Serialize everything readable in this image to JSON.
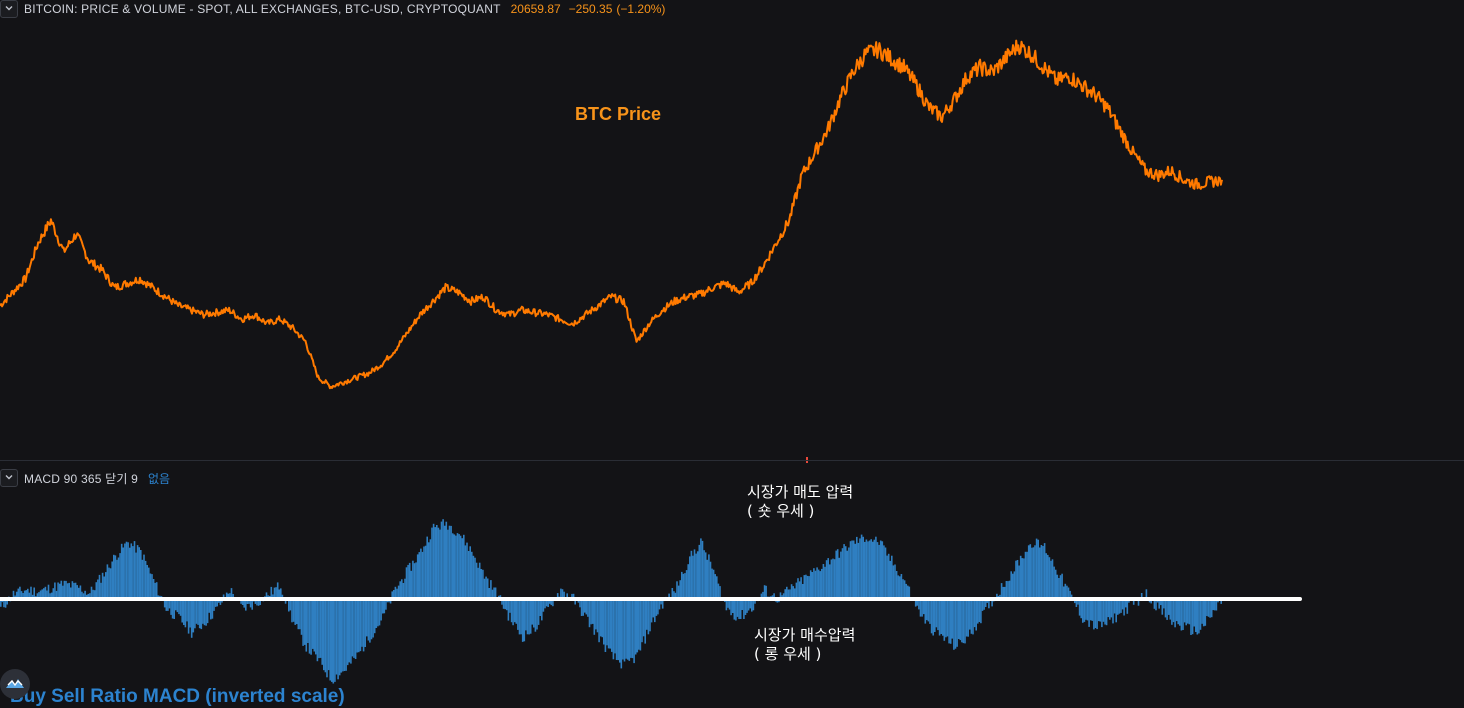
{
  "header": {
    "title": "BITCOIN: PRICE & VOLUME - SPOT, ALL EXCHANGES, BTC-USD, CRYPTOQUANT",
    "last": "20659.87",
    "change": "−250.35",
    "change_pct": "(−1.20%)",
    "value_color": "#f7931a"
  },
  "indicator": {
    "title": "MACD 90 365 닫기 9",
    "status": "없음",
    "status_color": "#2c83cf"
  },
  "annotations": {
    "btc_price": "BTC Price",
    "sell_pressure_1": "시장가 매도 압력",
    "sell_pressure_2": "( 숏 우세 )",
    "buy_pressure_1": "시장가 매수압력",
    "buy_pressure_2": "( 롱 우세 )",
    "bottom_title": "Buy Sell Ratio MACD (inverted scale)"
  },
  "colors": {
    "price_line": "#ff7a00",
    "histogram": "#2f7fc1",
    "zero_line": "#ffffff",
    "background": "#131316"
  },
  "chart_data": [
    {
      "type": "line",
      "series": [
        {
          "name": "BTC Price",
          "values": [
            46000,
            49000,
            52000,
            60000,
            65000,
            58000,
            62000,
            56000,
            54000,
            50000,
            51000,
            52000,
            50000,
            48000,
            46000,
            45000,
            44000,
            44500,
            45000,
            43000,
            44000,
            42000,
            43000,
            41000,
            38000,
            30000,
            28000,
            29000,
            30000,
            31000,
            33000,
            36000,
            40000,
            44000,
            47000,
            50000,
            49000,
            47000,
            48000,
            45000,
            44000,
            45000,
            44500,
            44000,
            43000,
            42000,
            44000,
            46000,
            48000,
            47000,
            38000,
            42000,
            45000,
            47000,
            48000,
            48500,
            50000,
            51000,
            49000,
            51000,
            55000,
            60000,
            65000,
            75000,
            80000,
            85000,
            92000,
            98000,
            102000,
            103000,
            101000,
            99000,
            95000,
            90000,
            88000,
            92000,
            97000,
            99000,
            98000,
            101000,
            104000,
            102000,
            99000,
            96000,
            97000,
            95000,
            93000,
            90000,
            85000,
            80000,
            76000,
            75000,
            76000,
            74000,
            73000,
            73500,
            74000
          ]
        }
      ]
    },
    {
      "type": "bar",
      "series": [
        {
          "name": "MACD 90 365",
          "values": [
            -1,
            0.5,
            1,
            0.8,
            1.2,
            1.6,
            1.3,
            0.6,
            2.5,
            4.5,
            6.0,
            5.0,
            2.0,
            -1,
            -2,
            -3.5,
            -2.5,
            -1,
            1,
            -1,
            -0.5,
            0.5,
            1.5,
            -2.5,
            -5,
            -6.5,
            -8.5,
            -7.5,
            -6,
            -4,
            -2,
            1,
            3,
            5,
            7.5,
            8.0,
            7.0,
            5.0,
            2.5,
            0.5,
            -2,
            -4,
            -3,
            -1,
            1,
            0,
            -2,
            -4,
            -6,
            -7,
            -6,
            -3,
            -0.5,
            1,
            4,
            6,
            3,
            -1,
            -2,
            -1,
            1,
            0,
            1,
            2,
            3,
            4,
            5,
            6,
            6.5,
            6.0,
            4,
            2,
            -1,
            -3,
            -4,
            -5,
            -4,
            -2,
            0,
            2,
            4,
            6,
            5.5,
            3,
            0.5,
            -2,
            -3,
            -2.5,
            -1.5,
            -0.5,
            0.5,
            -1,
            -2.5,
            -3,
            -3.5,
            -2,
            0
          ]
        }
      ],
      "zero_line": 0
    }
  ]
}
